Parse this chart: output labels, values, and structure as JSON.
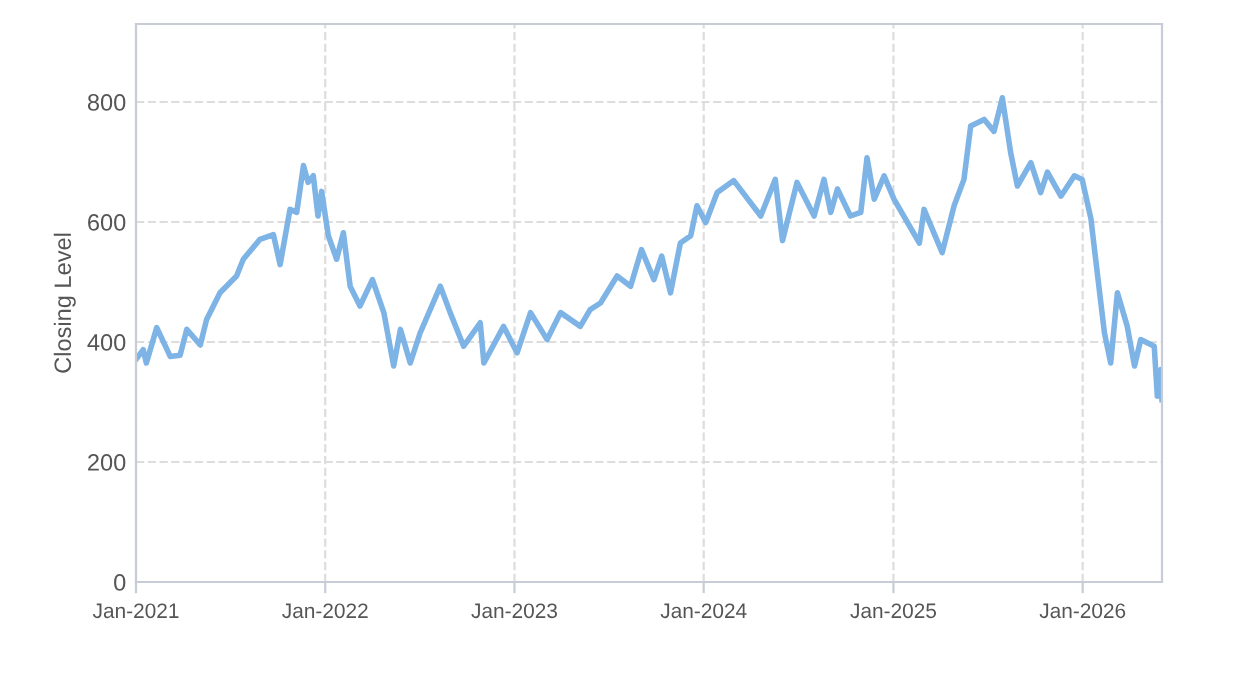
{
  "chart_data": {
    "type": "line",
    "ylabel": "Closing Level",
    "xlim": [
      "2021-01-01",
      "2026-06-03"
    ],
    "ylim": [
      0,
      930
    ],
    "xticks": [
      {
        "value": "2021-01-01",
        "label": "Jan-2021"
      },
      {
        "value": "2022-01-01",
        "label": "Jan-2022"
      },
      {
        "value": "2023-01-01",
        "label": "Jan-2023"
      },
      {
        "value": "2024-01-01",
        "label": "Jan-2024"
      },
      {
        "value": "2025-01-01",
        "label": "Jan-2025"
      },
      {
        "value": "2026-01-01",
        "label": "Jan-2026"
      }
    ],
    "yticks": [
      0,
      200,
      400,
      600,
      800
    ],
    "grid": true,
    "line_style": "solid",
    "marker": "none",
    "legend": false,
    "series": [
      {
        "color": "#7eb3e6",
        "x": [
          "2021-01-01",
          "2021-01-15",
          "2021-01-21",
          "2021-02-10",
          "2021-03-08",
          "2021-03-27",
          "2021-04-09",
          "2021-05-05",
          "2021-05-17",
          "2021-06-12",
          "2021-07-14",
          "2021-07-27",
          "2021-08-28",
          "2021-09-23",
          "2021-10-06",
          "2021-10-25",
          "2021-11-07",
          "2021-11-20",
          "2021-11-29",
          "2021-12-09",
          "2021-12-18",
          "2021-12-25",
          "2022-01-07",
          "2022-01-23",
          "2022-02-05",
          "2022-02-18",
          "2022-03-09",
          "2022-04-02",
          "2022-04-24",
          "2022-05-13",
          "2022-05-26",
          "2022-06-14",
          "2022-07-03",
          "2022-08-11",
          "2022-08-30",
          "2022-09-25",
          "2022-10-27",
          "2022-11-03",
          "2022-12-11",
          "2023-01-06",
          "2023-02-01",
          "2023-03-05",
          "2023-03-31",
          "2023-05-08",
          "2023-05-27",
          "2023-06-16",
          "2023-07-18",
          "2023-08-13",
          "2023-09-03",
          "2023-09-27",
          "2023-10-12",
          "2023-10-29",
          "2023-11-17",
          "2023-12-07",
          "2023-12-19",
          "2024-01-05",
          "2024-01-27",
          "2024-02-28",
          "2024-04-20",
          "2024-05-18",
          "2024-06-01",
          "2024-06-29",
          "2024-08-01",
          "2024-08-20",
          "2024-09-02",
          "2024-09-15",
          "2024-10-10",
          "2024-10-30",
          "2024-11-11",
          "2024-11-25",
          "2024-12-14",
          "2025-01-02",
          "2025-02-20",
          "2025-03-01",
          "2025-03-20",
          "2025-04-05",
          "2025-04-28",
          "2025-05-17",
          "2025-05-30",
          "2025-06-25",
          "2025-07-14",
          "2025-07-30",
          "2025-08-15",
          "2025-08-28",
          "2025-09-23",
          "2025-10-12",
          "2025-10-25",
          "2025-11-20",
          "2025-12-16",
          "2025-12-31",
          "2026-01-17",
          "2026-01-23",
          "2026-02-12",
          "2026-02-24",
          "2026-03-09",
          "2026-03-28",
          "2026-04-11",
          "2026-04-23",
          "2026-05-19",
          "2026-05-25",
          "2026-06-01",
          "2026-06-03"
        ],
        "values": [
          371,
          387,
          365,
          424,
          376,
          378,
          421,
          395,
          437,
          482,
          510,
          538,
          571,
          579,
          529,
          621,
          616,
          694,
          666,
          677,
          610,
          651,
          577,
          538,
          582,
          493,
          460,
          504,
          449,
          360,
          421,
          365,
          415,
          493,
          449,
          393,
          432,
          365,
          426,
          382,
          449,
          404,
          449,
          426,
          454,
          465,
          510,
          493,
          554,
          504,
          543,
          482,
          565,
          577,
          627,
          599,
          649,
          669,
          610,
          671,
          569,
          666,
          610,
          671,
          616,
          655,
          610,
          616,
          707,
          638,
          677,
          638,
          565,
          621,
          582,
          549,
          627,
          671,
          760,
          771,
          751,
          807,
          716,
          660,
          699,
          649,
          683,
          643,
          677,
          671,
          605,
          560,
          415,
          365,
          482,
          426,
          360,
          404,
          393,
          310,
          354,
          304
        ]
      }
    ]
  }
}
